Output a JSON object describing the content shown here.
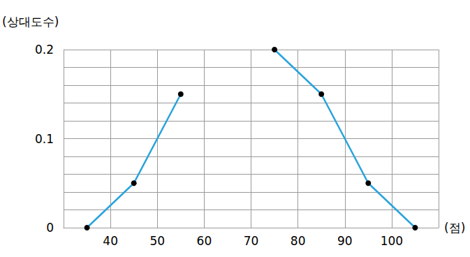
{
  "chart_data": {
    "type": "line",
    "x_label": "(점)",
    "y_label": "(상대도수)",
    "x": [
      35,
      45,
      55,
      65,
      75,
      85,
      95,
      105
    ],
    "values": [
      0,
      0.05,
      0.15,
      null,
      0.2,
      0.15,
      0.05,
      0
    ],
    "color": "#29a3dc",
    "marker": "circle",
    "xlim": [
      30,
      110
    ],
    "xticks": [
      40,
      50,
      60,
      70,
      80,
      90,
      100
    ],
    "ylim": [
      0,
      0.2
    ],
    "yticks": [
      0,
      0.1,
      0.2
    ],
    "grid": true
  }
}
